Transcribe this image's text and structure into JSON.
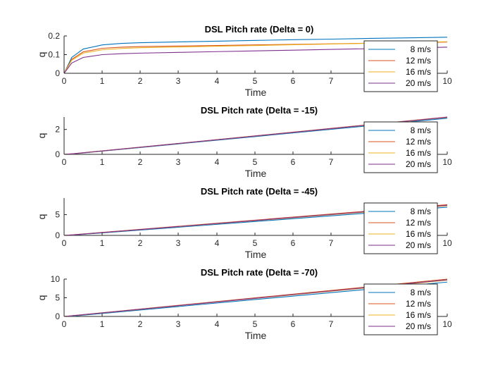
{
  "chart_data": [
    {
      "type": "line",
      "title": "DSL Pitch rate (Delta = 0)",
      "xlabel": "Time",
      "ylabel": "q",
      "xlim": [
        0,
        10
      ],
      "ylim": [
        0,
        0.2
      ],
      "xticks": [
        "0",
        "1",
        "2",
        "3",
        "4",
        "5",
        "6",
        "7",
        "10"
      ],
      "yticks": [
        "0",
        "0.1",
        "0.2"
      ],
      "legend_position": "right",
      "grid": false,
      "series": [
        {
          "name": "8 m/s",
          "color": "#0072BD",
          "x": [
            0,
            0.2,
            0.5,
            1,
            1.5,
            2,
            3,
            4,
            5,
            6,
            7,
            8,
            9,
            10
          ],
          "y": [
            0,
            0.085,
            0.13,
            0.152,
            0.16,
            0.164,
            0.168,
            0.172,
            0.176,
            0.18,
            0.183,
            0.187,
            0.19,
            0.193
          ]
        },
        {
          "name": "12 m/s",
          "color": "#D95319",
          "x": [
            0,
            0.2,
            0.5,
            1,
            1.5,
            2,
            3,
            4,
            5,
            6,
            7,
            8,
            9,
            10
          ],
          "y": [
            0,
            0.075,
            0.115,
            0.134,
            0.14,
            0.143,
            0.146,
            0.149,
            0.152,
            0.155,
            0.158,
            0.161,
            0.164,
            0.167
          ]
        },
        {
          "name": "16 m/s",
          "color": "#EDB120",
          "x": [
            0,
            0.2,
            0.5,
            1,
            1.5,
            2,
            3,
            4,
            5,
            6,
            7,
            8,
            9,
            10
          ],
          "y": [
            0,
            0.07,
            0.108,
            0.126,
            0.133,
            0.137,
            0.141,
            0.145,
            0.149,
            0.153,
            0.157,
            0.161,
            0.165,
            0.169
          ]
        },
        {
          "name": "20 m/s",
          "color": "#7E2F8E",
          "x": [
            0,
            0.2,
            0.5,
            1,
            1.5,
            2,
            3,
            4,
            5,
            6,
            7,
            8,
            9,
            10
          ],
          "y": [
            0,
            0.055,
            0.085,
            0.1,
            0.105,
            0.108,
            0.112,
            0.116,
            0.12,
            0.124,
            0.128,
            0.132,
            0.136,
            0.14
          ]
        }
      ]
    },
    {
      "type": "line",
      "title": "DSL Pitch rate (Delta = -15)",
      "xlabel": "Time",
      "ylabel": "q",
      "xlim": [
        0,
        10
      ],
      "ylim": [
        0,
        3
      ],
      "xticks": [
        "0",
        "1",
        "2",
        "3",
        "4",
        "5",
        "6",
        "7",
        "10"
      ],
      "yticks": [
        "0",
        "2"
      ],
      "legend_position": "right",
      "grid": false,
      "series": [
        {
          "name": "8 m/s",
          "color": "#0072BD",
          "x": [
            0,
            0.3,
            10
          ],
          "y": [
            0,
            0.05,
            2.9
          ]
        },
        {
          "name": "12 m/s",
          "color": "#D95319",
          "x": [
            0,
            0.3,
            10
          ],
          "y": [
            0,
            0.07,
            3.0
          ]
        },
        {
          "name": "16 m/s",
          "color": "#EDB120",
          "x": [
            0,
            0.3,
            10
          ],
          "y": [
            0,
            0.06,
            2.97
          ]
        },
        {
          "name": "20 m/s",
          "color": "#7E2F8E",
          "x": [
            0,
            0.3,
            10
          ],
          "y": [
            0,
            0.065,
            2.98
          ]
        }
      ]
    },
    {
      "type": "line",
      "title": "DSL Pitch rate (Delta = -45)",
      "xlabel": "Time",
      "ylabel": "q",
      "xlim": [
        0,
        10
      ],
      "ylim": [
        0,
        9
      ],
      "xticks": [
        "0",
        "1",
        "2",
        "3",
        "4",
        "5",
        "6",
        "7",
        "10"
      ],
      "yticks": [
        "0",
        "5"
      ],
      "legend_position": "right",
      "grid": false,
      "series": [
        {
          "name": "8 m/s",
          "color": "#0072BD",
          "x": [
            0,
            0.3,
            10
          ],
          "y": [
            0,
            0.12,
            6.8
          ]
        },
        {
          "name": "12 m/s",
          "color": "#D95319",
          "x": [
            0,
            0.3,
            10
          ],
          "y": [
            0,
            0.2,
            7.4
          ]
        },
        {
          "name": "16 m/s",
          "color": "#EDB120",
          "x": [
            0,
            0.3,
            10
          ],
          "y": [
            0,
            0.17,
            7.15
          ]
        },
        {
          "name": "20 m/s",
          "color": "#7E2F8E",
          "x": [
            0,
            0.3,
            10
          ],
          "y": [
            0,
            0.18,
            7.25
          ]
        }
      ]
    },
    {
      "type": "line",
      "title": "DSL Pitch rate (Delta = -70)",
      "xlabel": "Time",
      "ylabel": "q",
      "xlim": [
        0,
        10
      ],
      "ylim": [
        0,
        10
      ],
      "xticks": [
        "0",
        "1",
        "2",
        "3",
        "4",
        "5",
        "6",
        "7",
        "10"
      ],
      "yticks": [
        "0",
        "5",
        "10"
      ],
      "legend_position": "right",
      "grid": false,
      "series": [
        {
          "name": "8 m/s",
          "color": "#0072BD",
          "x": [
            0,
            0.3,
            10
          ],
          "y": [
            0,
            0.15,
            9.2
          ]
        },
        {
          "name": "12 m/s",
          "color": "#D95319",
          "x": [
            0,
            0.3,
            10
          ],
          "y": [
            0,
            0.3,
            10.0
          ]
        },
        {
          "name": "16 m/s",
          "color": "#EDB120",
          "x": [
            0,
            0.3,
            10
          ],
          "y": [
            0,
            0.25,
            9.7
          ]
        },
        {
          "name": "20 m/s",
          "color": "#7E2F8E",
          "x": [
            0,
            0.3,
            10
          ],
          "y": [
            0,
            0.27,
            9.8
          ]
        }
      ]
    }
  ]
}
